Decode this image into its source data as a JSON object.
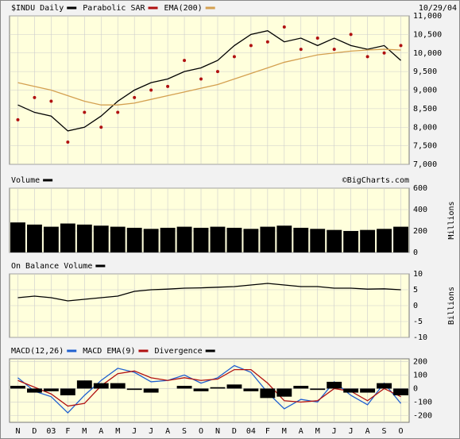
{
  "chart_data": [
    {
      "type": "line",
      "date": "10/29/04",
      "series": [
        {
          "name": "$INDU Daily",
          "color": "#000000",
          "values": [
            8600,
            8400,
            8300,
            7900,
            8000,
            8300,
            8700,
            9000,
            9200,
            9300,
            9500,
            9600,
            9800,
            10200,
            10500,
            10600,
            10300,
            10400,
            10200,
            10400,
            10200,
            10100,
            10200,
            9800
          ]
        },
        {
          "name": "Parabolic SAR",
          "color": "#b01010",
          "mark": "dots",
          "values": [
            8200,
            8800,
            8700,
            7600,
            8400,
            8000,
            8400,
            8800,
            9000,
            9100,
            9800,
            9300,
            9500,
            9900,
            10200,
            10300,
            10700,
            10100,
            10400,
            10100,
            10500,
            9900,
            10000,
            10200
          ]
        },
        {
          "name": "EMA(200)",
          "color": "#d4a050",
          "values": [
            9200,
            9100,
            9000,
            8850,
            8700,
            8600,
            8600,
            8650,
            8750,
            8850,
            8950,
            9050,
            9150,
            9300,
            9450,
            9600,
            9750,
            9850,
            9950,
            10000,
            10050,
            10080,
            10100,
            10080
          ]
        }
      ],
      "ylim": [
        7000,
        11000
      ],
      "yticks": [
        {
          "value": 7000,
          "label": "7,000"
        },
        {
          "value": 7500,
          "label": "7,500"
        },
        {
          "value": 8000,
          "label": "8,000"
        },
        {
          "value": 8500,
          "label": "8,500"
        },
        {
          "value": 9000,
          "label": "9,000"
        },
        {
          "value": 9500,
          "label": "9,500"
        },
        {
          "value": 10000,
          "label": "10,000"
        },
        {
          "value": 10500,
          "label": "10,500"
        },
        {
          "value": 11000,
          "label": "11,000"
        }
      ],
      "grid": true
    },
    {
      "type": "bar",
      "annotation": "©BigCharts.com",
      "ylabel": "Millions",
      "series": [
        {
          "name": "Volume",
          "color": "#000000",
          "mark": "bar",
          "values": [
            280,
            260,
            240,
            270,
            260,
            250,
            240,
            230,
            220,
            230,
            240,
            230,
            240,
            230,
            220,
            240,
            250,
            230,
            220,
            210,
            200,
            210,
            220,
            240
          ]
        }
      ],
      "ylim": [
        0,
        600
      ],
      "yticks": [
        0,
        200,
        400,
        600
      ],
      "grid": true
    },
    {
      "type": "line",
      "ylabel": "Billions",
      "series": [
        {
          "name": "On Balance Volume",
          "color": "#000000",
          "values": [
            2.5,
            3,
            2.5,
            1.5,
            2,
            2.5,
            3,
            4.5,
            5,
            5.2,
            5.5,
            5.6,
            5.8,
            6,
            6.5,
            7,
            6.5,
            6,
            6,
            5.5,
            5.5,
            5.2,
            5.3,
            5
          ]
        }
      ],
      "ylim": [
        -10,
        10
      ],
      "yticks": [
        -10,
        -5,
        0,
        5,
        10
      ],
      "grid": true
    },
    {
      "type": "line",
      "categories": [
        "N",
        "D",
        "03",
        "F",
        "M",
        "A",
        "M",
        "J",
        "J",
        "A",
        "S",
        "O",
        "N",
        "D",
        "04",
        "F",
        "M",
        "A",
        "M",
        "J",
        "J",
        "A",
        "S",
        "O"
      ],
      "series": [
        {
          "name": "MACD(12,26)",
          "color": "#2060d0",
          "values": [
            80,
            -20,
            -60,
            -180,
            -50,
            60,
            150,
            120,
            50,
            60,
            100,
            40,
            80,
            170,
            120,
            -30,
            -150,
            -80,
            -100,
            50,
            -50,
            -120,
            40,
            -110
          ]
        },
        {
          "name": "MACD EMA(9)",
          "color": "#b01010",
          "values": [
            60,
            10,
            -40,
            -130,
            -110,
            20,
            110,
            130,
            80,
            60,
            80,
            60,
            70,
            140,
            140,
            40,
            -90,
            -100,
            -90,
            0,
            -20,
            -90,
            0,
            -60
          ]
        },
        {
          "name": "Divergence",
          "color": "#000000",
          "mark": "bar",
          "values": [
            20,
            -30,
            -20,
            -50,
            60,
            40,
            40,
            -10,
            -30,
            0,
            20,
            -20,
            10,
            30,
            -20,
            -70,
            -60,
            20,
            -10,
            50,
            -30,
            -30,
            40,
            -50
          ]
        }
      ],
      "ylim": [
        -250,
        220
      ],
      "yticks": [
        -200,
        -100,
        0,
        100,
        200
      ],
      "grid": true
    }
  ]
}
